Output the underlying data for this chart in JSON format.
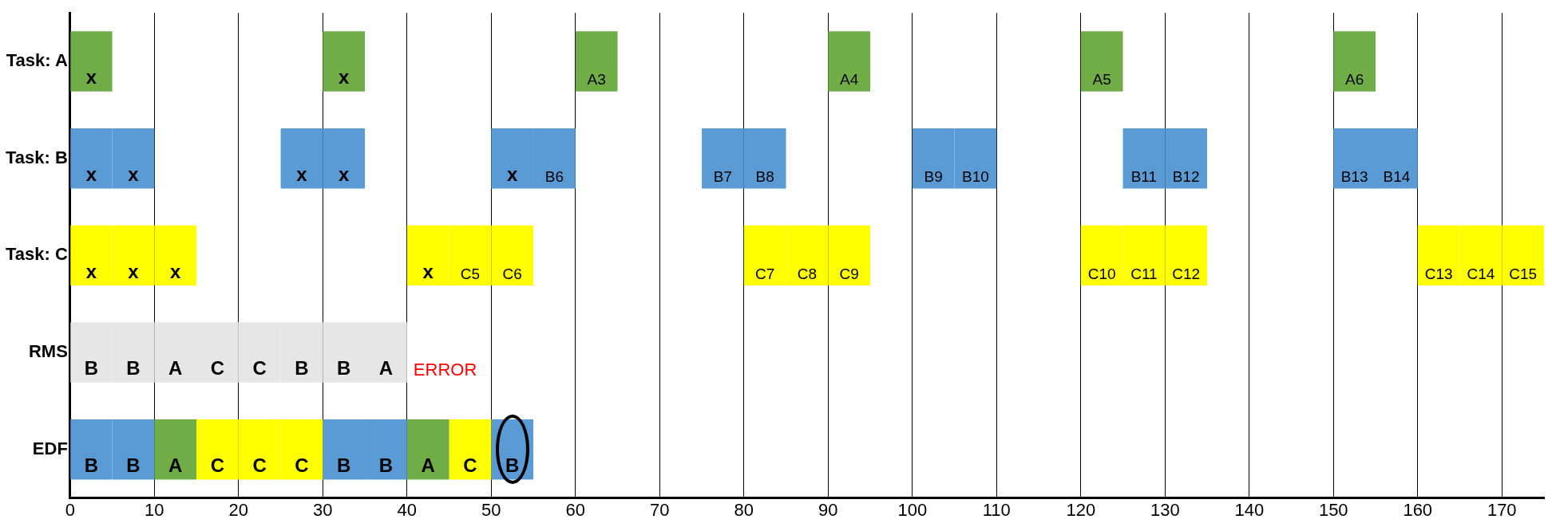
{
  "chart_data": {
    "type": "bar",
    "orientation": "horizontal",
    "categories": [
      "Task: A",
      "Task: B",
      "Task: C",
      "RMS",
      "EDF"
    ],
    "xlim": [
      0,
      175
    ],
    "xticks": [
      0,
      10,
      20,
      30,
      40,
      50,
      60,
      70,
      80,
      90,
      100,
      110,
      120,
      130,
      140,
      150,
      160,
      170
    ],
    "grid": "x",
    "legend": false,
    "annotations": [
      "ERROR"
    ],
    "series": [
      {
        "base": [
          0,
          0,
          0,
          0,
          0
        ],
        "values": [
          5,
          5,
          5,
          5,
          5
        ],
        "colors": [
          "#70ad47",
          "#5b9bd5",
          "#ffff00",
          "#e7e6e6",
          "#5b9bd5"
        ],
        "value_labels": [
          "x",
          "x",
          "x",
          "B",
          "B"
        ]
      },
      {
        "base": [
          30,
          5,
          5,
          5,
          5
        ],
        "values": [
          5,
          5,
          5,
          5,
          5
        ],
        "colors": [
          "#70ad47",
          "#5b9bd5",
          "#ffff00",
          "#e7e6e6",
          "#5b9bd5"
        ],
        "value_labels": [
          "x",
          "x",
          "x",
          "B",
          "B"
        ]
      },
      {
        "base": [
          60,
          25,
          10,
          10,
          10
        ],
        "values": [
          5,
          5,
          5,
          5,
          5
        ],
        "colors": [
          "#70ad47",
          "#5b9bd5",
          "#ffff00",
          "#e7e6e6",
          "#70ad47"
        ],
        "value_labels": [
          "A3",
          "x",
          "x",
          "A",
          "A"
        ]
      },
      {
        "base": [
          90,
          30,
          40,
          15,
          15
        ],
        "values": [
          5,
          5,
          5,
          5,
          5
        ],
        "colors": [
          "#70ad47",
          "#5b9bd5",
          "#ffff00",
          "#e7e6e6",
          "#ffff00"
        ],
        "value_labels": [
          "A4",
          "x",
          "x",
          "C",
          "C"
        ]
      },
      {
        "base": [
          120,
          50,
          45,
          20,
          20
        ],
        "values": [
          5,
          5,
          5,
          5,
          5
        ],
        "colors": [
          "#70ad47",
          "#5b9bd5",
          "#ffff00",
          "#e7e6e6",
          "#ffff00"
        ],
        "value_labels": [
          "A5",
          "x",
          "C5",
          "C",
          "C"
        ]
      },
      {
        "base": [
          150,
          55,
          50,
          25,
          25
        ],
        "values": [
          5,
          5,
          5,
          5,
          5
        ],
        "colors": [
          "#70ad47",
          "#5b9bd5",
          "#ffff00",
          "#e7e6e6",
          "#ffff00"
        ],
        "value_labels": [
          "A6",
          "B6",
          "C6",
          "B",
          "C"
        ]
      },
      {
        "base": [
          null,
          75,
          80,
          30,
          30
        ],
        "values": [
          null,
          5,
          5,
          5,
          5
        ],
        "colors": [
          null,
          "#5b9bd5",
          "#ffff00",
          "#e7e6e6",
          "#5b9bd5"
        ],
        "value_labels": [
          null,
          "B7",
          "C7",
          "B",
          "B"
        ]
      },
      {
        "base": [
          null,
          80,
          85,
          35,
          35
        ],
        "values": [
          null,
          5,
          5,
          5,
          5
        ],
        "colors": [
          null,
          "#5b9bd5",
          "#ffff00",
          "#e7e6e6",
          "#5b9bd5"
        ],
        "value_labels": [
          null,
          "B8",
          "C8",
          "A",
          "B"
        ]
      },
      {
        "base": [
          null,
          100,
          90,
          null,
          40
        ],
        "values": [
          null,
          5,
          5,
          null,
          5
        ],
        "colors": [
          null,
          "#5b9bd5",
          "#ffff00",
          null,
          "#70ad47"
        ],
        "value_labels": [
          null,
          "B9",
          "C9",
          null,
          "A"
        ]
      },
      {
        "base": [
          null,
          105,
          120,
          null,
          45
        ],
        "values": [
          null,
          5,
          5,
          null,
          5
        ],
        "colors": [
          null,
          "#5b9bd5",
          "#ffff00",
          null,
          "#ffff00"
        ],
        "value_labels": [
          null,
          "B10",
          "C10",
          null,
          "C"
        ]
      },
      {
        "base": [
          null,
          125,
          125,
          null,
          50
        ],
        "values": [
          null,
          5,
          5,
          null,
          5
        ],
        "colors": [
          null,
          "#5b9bd5",
          "#ffff00",
          null,
          "#5b9bd5"
        ],
        "value_labels": [
          null,
          "B11",
          "C11",
          null,
          "B"
        ]
      },
      {
        "base": [
          null,
          130,
          130,
          null,
          null
        ],
        "values": [
          null,
          5,
          5,
          null,
          null
        ],
        "colors": [
          null,
          "#5b9bd5",
          "#ffff00",
          null,
          null
        ],
        "value_labels": [
          null,
          "B12",
          "C12",
          null,
          null
        ]
      },
      {
        "base": [
          null,
          150,
          160,
          null,
          null
        ],
        "values": [
          null,
          5,
          5,
          null,
          null
        ],
        "colors": [
          null,
          "#5b9bd5",
          "#ffff00",
          null,
          null
        ],
        "value_labels": [
          null,
          "B13",
          "C13",
          null,
          null
        ]
      },
      {
        "base": [
          null,
          155,
          165,
          null,
          null
        ],
        "values": [
          null,
          5,
          5,
          null,
          null
        ],
        "colors": [
          null,
          "#5b9bd5",
          "#ffff00",
          null,
          null
        ],
        "value_labels": [
          null,
          "B14",
          "C14",
          null,
          null
        ]
      },
      {
        "base": [
          null,
          null,
          170,
          null,
          null
        ],
        "values": [
          null,
          null,
          5,
          null,
          null
        ],
        "colors": [
          null,
          null,
          "#ffff00",
          null,
          null
        ],
        "value_labels": [
          null,
          null,
          "C15",
          null,
          null
        ]
      }
    ]
  }
}
